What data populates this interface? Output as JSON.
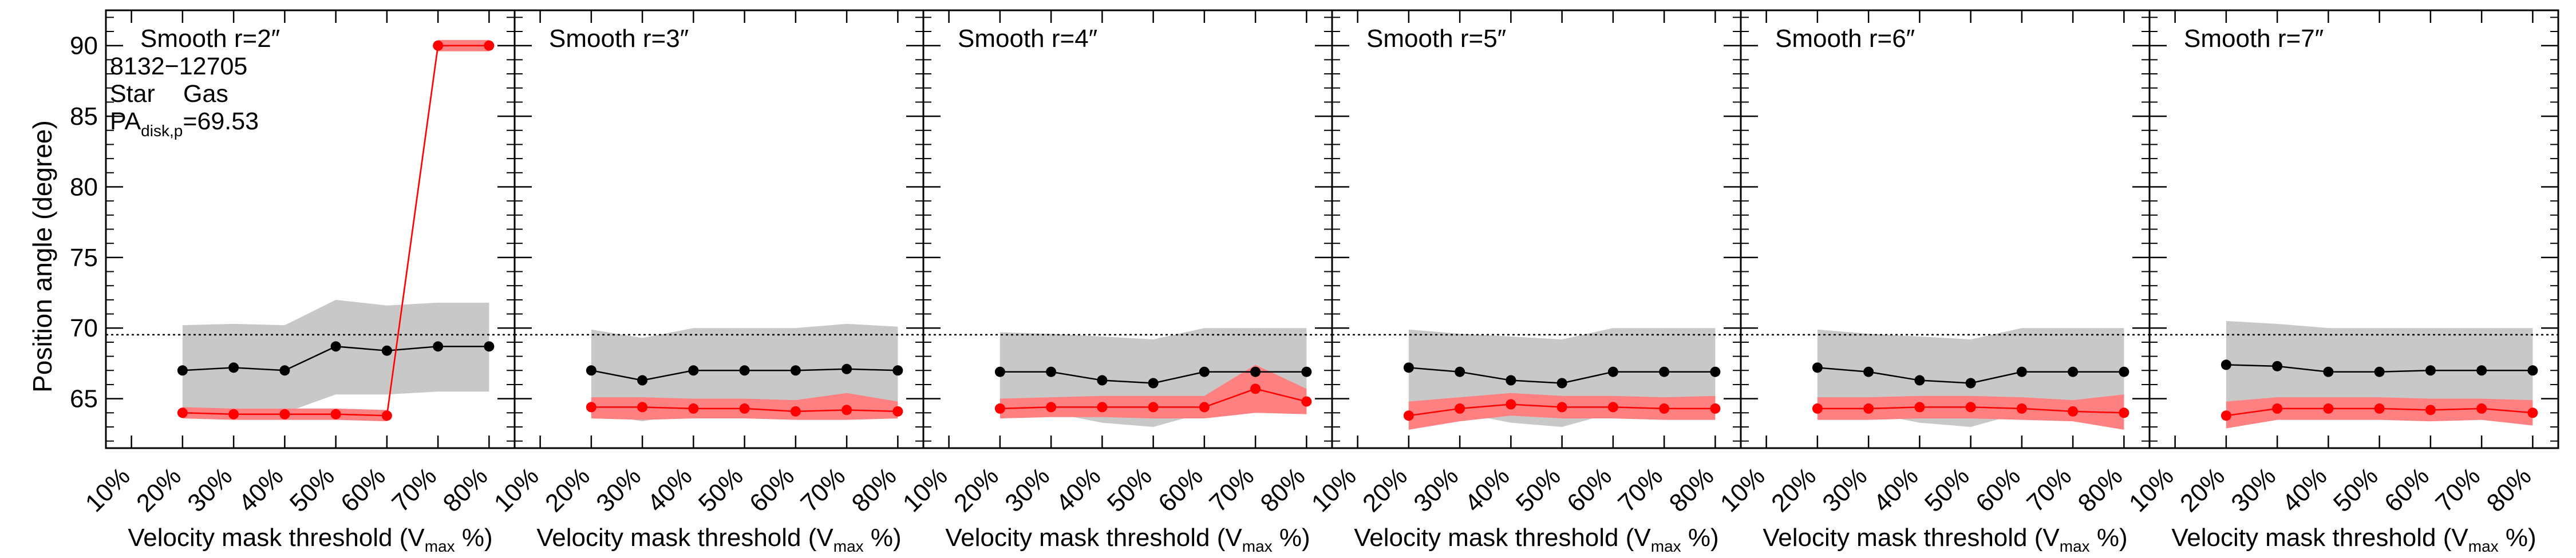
{
  "figure": {
    "ylabel": "Position angle (degree)",
    "xlabel_main": "Velocity mask threshold (V",
    "xlabel_sub": "max",
    "xlabel_end": " %)",
    "info_line1": "8132−12705",
    "legend_star": "Star",
    "legend_gas": "Gas",
    "pa_main": "PA",
    "pa_sub": "disk,p",
    "pa_value": "=69.53"
  },
  "chart_data": {
    "type": "line",
    "x_tick_labels": [
      "10%",
      "20%",
      "30%",
      "40%",
      "50%",
      "60%",
      "70%",
      "80%"
    ],
    "y_ticks": [
      65,
      70,
      75,
      80,
      85,
      90
    ],
    "xlim": [
      0.05,
      0.85
    ],
    "ylim": [
      61.5,
      92.5
    ],
    "reference_line": {
      "label": "PA_disk,p",
      "value": 69.53,
      "style": "dotted"
    },
    "colors": {
      "star": "#000000",
      "star_band": "#c8c8c8",
      "gas": "#ff0000",
      "gas_band": "#ff8080"
    },
    "panels": [
      {
        "title": "Smooth r=2″",
        "x": [
          0.2,
          0.3,
          0.4,
          0.5,
          0.6,
          0.7,
          0.8
        ],
        "star": {
          "values": [
            67.0,
            67.2,
            67.0,
            68.7,
            68.4,
            68.7,
            68.7
          ],
          "lower": [
            63.6,
            64.0,
            64.0,
            65.3,
            65.3,
            65.5,
            65.5
          ],
          "upper": [
            70.2,
            70.3,
            70.2,
            72.0,
            71.6,
            71.8,
            71.8
          ]
        },
        "gas": {
          "values": [
            64.0,
            63.9,
            63.9,
            63.9,
            63.8,
            90.0,
            90.0
          ],
          "lower": [
            63.6,
            63.5,
            63.5,
            63.5,
            63.4,
            89.6,
            89.6
          ],
          "upper": [
            64.4,
            64.3,
            64.3,
            64.3,
            64.2,
            90.4,
            90.4
          ]
        }
      },
      {
        "title": "Smooth r=3″",
        "x": [
          0.2,
          0.3,
          0.4,
          0.5,
          0.6,
          0.7,
          0.8
        ],
        "star": {
          "values": [
            67.0,
            66.3,
            67.0,
            67.0,
            67.0,
            67.1,
            67.0
          ],
          "lower": [
            64.0,
            63.4,
            64.0,
            64.0,
            64.0,
            64.1,
            64.0
          ],
          "upper": [
            69.9,
            69.3,
            70.0,
            70.0,
            70.0,
            70.3,
            70.1
          ]
        },
        "gas": {
          "values": [
            64.4,
            64.4,
            64.3,
            64.3,
            64.1,
            64.2,
            64.1
          ],
          "lower": [
            63.6,
            63.5,
            63.6,
            63.6,
            63.5,
            63.5,
            63.6
          ],
          "upper": [
            65.1,
            65.1,
            65.0,
            65.0,
            64.9,
            65.4,
            64.8
          ]
        }
      },
      {
        "title": "Smooth r=4″",
        "x": [
          0.2,
          0.3,
          0.4,
          0.5,
          0.6,
          0.7,
          0.8
        ],
        "star": {
          "values": [
            66.9,
            66.9,
            66.3,
            66.1,
            66.9,
            66.9,
            66.9
          ],
          "lower": [
            64.0,
            64.0,
            63.3,
            63.0,
            64.0,
            64.0,
            64.0
          ],
          "upper": [
            69.7,
            69.6,
            69.4,
            69.2,
            70.0,
            70.0,
            70.0
          ]
        },
        "gas": {
          "values": [
            64.3,
            64.4,
            64.4,
            64.4,
            64.4,
            65.7,
            64.8
          ],
          "lower": [
            63.6,
            63.7,
            63.7,
            63.6,
            63.6,
            64.0,
            63.9
          ],
          "upper": [
            65.0,
            65.1,
            65.2,
            65.2,
            65.2,
            67.4,
            65.7
          ]
        }
      },
      {
        "title": "Smooth r=5″",
        "x": [
          0.2,
          0.3,
          0.4,
          0.5,
          0.6,
          0.7,
          0.8
        ],
        "star": {
          "values": [
            67.2,
            66.9,
            66.3,
            66.1,
            66.9,
            66.9,
            66.9
          ],
          "lower": [
            64.1,
            64.0,
            63.3,
            63.0,
            64.0,
            64.0,
            64.0
          ],
          "upper": [
            69.9,
            69.6,
            69.4,
            69.2,
            70.0,
            70.0,
            70.0
          ]
        },
        "gas": {
          "values": [
            63.8,
            64.3,
            64.6,
            64.4,
            64.4,
            64.3,
            64.3
          ],
          "lower": [
            62.8,
            63.4,
            63.8,
            63.6,
            63.6,
            63.5,
            63.5
          ],
          "upper": [
            64.8,
            65.1,
            65.4,
            65.2,
            65.2,
            65.1,
            65.2
          ]
        }
      },
      {
        "title": "Smooth r=6″",
        "x": [
          0.2,
          0.3,
          0.4,
          0.5,
          0.6,
          0.7,
          0.8
        ],
        "star": {
          "values": [
            67.2,
            66.9,
            66.3,
            66.1,
            66.9,
            66.9,
            66.9
          ],
          "lower": [
            64.1,
            64.0,
            63.3,
            63.0,
            64.0,
            64.0,
            64.0
          ],
          "upper": [
            69.9,
            69.6,
            69.4,
            69.2,
            70.0,
            70.0,
            70.0
          ]
        },
        "gas": {
          "values": [
            64.3,
            64.3,
            64.4,
            64.4,
            64.3,
            64.1,
            64.0
          ],
          "lower": [
            63.5,
            63.5,
            63.6,
            63.6,
            63.5,
            63.4,
            62.8
          ],
          "upper": [
            65.1,
            65.1,
            65.2,
            65.2,
            65.1,
            64.9,
            65.3
          ]
        }
      },
      {
        "title": "Smooth r=7″",
        "x": [
          0.2,
          0.3,
          0.4,
          0.5,
          0.6,
          0.7,
          0.8
        ],
        "star": {
          "values": [
            67.4,
            67.3,
            66.9,
            66.9,
            67.0,
            67.0,
            67.0
          ],
          "lower": [
            64.3,
            64.2,
            64.0,
            64.0,
            64.0,
            64.0,
            64.0
          ],
          "upper": [
            70.5,
            70.3,
            70.0,
            70.0,
            70.0,
            70.0,
            70.0
          ]
        },
        "gas": {
          "values": [
            63.8,
            64.3,
            64.3,
            64.3,
            64.2,
            64.3,
            64.0
          ],
          "lower": [
            62.9,
            63.5,
            63.5,
            63.5,
            63.4,
            63.5,
            63.1
          ],
          "upper": [
            64.8,
            65.1,
            65.1,
            65.1,
            65.0,
            65.0,
            64.9
          ]
        }
      }
    ]
  }
}
